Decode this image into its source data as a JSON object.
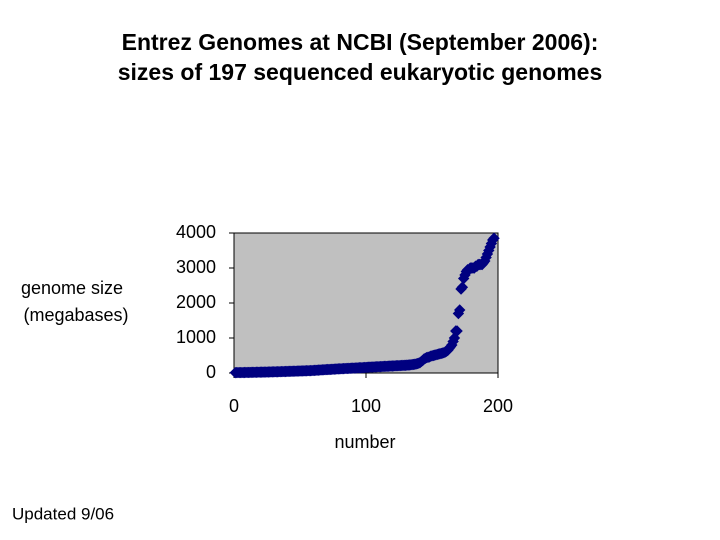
{
  "chart_data": {
    "type": "scatter",
    "title": "Entrez Genomes at NCBI (September 2006):",
    "subtitle": "sizes of 197 sequenced eukaryotic genomes",
    "ylabel": [
      "genome size",
      "(megabases)"
    ],
    "xlabel": "number",
    "note": "Updated 9/06",
    "color": "#000080",
    "plot_background": "#c0c0c0",
    "xlim": [
      0,
      200
    ],
    "xticks": [
      0,
      100,
      200
    ],
    "ylim": [
      0,
      4000
    ],
    "yticks": [
      0,
      1000,
      2000,
      3000,
      4000
    ],
    "x": [
      1,
      2,
      3,
      4,
      5,
      6,
      7,
      8,
      9,
      10,
      11,
      12,
      13,
      14,
      15,
      16,
      17,
      18,
      19,
      20,
      21,
      22,
      23,
      24,
      25,
      26,
      27,
      28,
      29,
      30,
      31,
      32,
      33,
      34,
      35,
      36,
      37,
      38,
      39,
      40,
      41,
      42,
      43,
      44,
      45,
      46,
      47,
      48,
      49,
      50,
      51,
      52,
      53,
      54,
      55,
      56,
      57,
      58,
      59,
      60,
      61,
      62,
      63,
      64,
      65,
      66,
      67,
      68,
      69,
      70,
      71,
      72,
      73,
      74,
      75,
      76,
      77,
      78,
      79,
      80,
      81,
      82,
      83,
      84,
      85,
      86,
      87,
      88,
      89,
      90,
      91,
      92,
      93,
      94,
      95,
      96,
      97,
      98,
      99,
      100,
      101,
      102,
      103,
      104,
      105,
      106,
      107,
      108,
      109,
      110,
      111,
      112,
      113,
      114,
      115,
      116,
      117,
      118,
      119,
      120,
      121,
      122,
      123,
      124,
      125,
      126,
      127,
      128,
      129,
      130,
      131,
      132,
      133,
      134,
      135,
      136,
      137,
      138,
      139,
      140,
      141,
      142,
      143,
      144,
      145,
      146,
      147,
      148,
      149,
      150,
      151,
      152,
      153,
      154,
      155,
      156,
      157,
      158,
      159,
      160,
      161,
      162,
      163,
      164,
      165,
      166,
      167,
      168,
      169,
      170,
      171,
      172,
      173,
      174,
      175,
      176,
      177,
      178,
      179,
      180,
      181,
      182,
      183,
      184,
      185,
      186,
      187,
      188,
      189,
      190,
      191,
      192,
      193,
      194,
      195,
      196,
      197
    ],
    "values": [
      10,
      12,
      12,
      12,
      13,
      13,
      13,
      14,
      15,
      16,
      16,
      17,
      18,
      19,
      20,
      20,
      21,
      22,
      23,
      24,
      25,
      25,
      26,
      27,
      28,
      29,
      30,
      31,
      32,
      33,
      34,
      35,
      36,
      37,
      38,
      40,
      41,
      42,
      43,
      45,
      46,
      47,
      48,
      50,
      51,
      52,
      53,
      55,
      56,
      57,
      58,
      60,
      61,
      62,
      64,
      65,
      66,
      68,
      70,
      72,
      75,
      78,
      80,
      82,
      85,
      88,
      90,
      92,
      95,
      98,
      100,
      100,
      102,
      105,
      108,
      110,
      112,
      115,
      118,
      120,
      120,
      122,
      125,
      128,
      130,
      130,
      132,
      135,
      138,
      140,
      140,
      142,
      145,
      148,
      150,
      150,
      152,
      155,
      158,
      160,
      162,
      165,
      168,
      170,
      170,
      172,
      175,
      178,
      180,
      180,
      182,
      185,
      188,
      190,
      190,
      192,
      195,
      198,
      200,
      200,
      202,
      205,
      208,
      210,
      210,
      212,
      215,
      218,
      220,
      220,
      225,
      228,
      230,
      235,
      240,
      245,
      250,
      260,
      270,
      280,
      300,
      330,
      360,
      400,
      420,
      440,
      450,
      460,
      480,
      490,
      500,
      510,
      520,
      530,
      540,
      550,
      560,
      570,
      580,
      600,
      620,
      650,
      700,
      750,
      800,
      900,
      1000,
      1200,
      1200,
      1700,
      1800,
      2400,
      2450,
      2700,
      2800,
      2900,
      2950,
      2950,
      3000,
      3000,
      3000,
      3000,
      3050,
      3050,
      3100,
      3100,
      3100,
      3100,
      3150,
      3200,
      3300,
      3400,
      3500,
      3600,
      3700,
      3800,
      3850
    ]
  }
}
